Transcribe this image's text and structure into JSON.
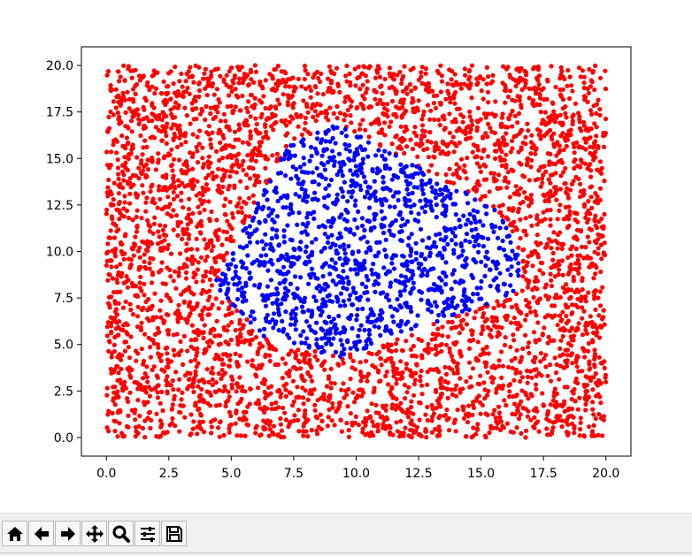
{
  "chart_data": {
    "type": "scatter",
    "title": "",
    "xlabel": "",
    "ylabel": "",
    "xlim": [
      -1.0,
      21.0
    ],
    "ylim": [
      -1.0,
      21.0
    ],
    "x_ticks": [
      "0.0",
      "2.5",
      "5.0",
      "7.5",
      "10.0",
      "12.5",
      "15.0",
      "17.5",
      "20.0"
    ],
    "y_ticks": [
      "0.0",
      "2.5",
      "5.0",
      "7.5",
      "10.0",
      "12.5",
      "15.0",
      "17.5",
      "20.0"
    ],
    "grid": false,
    "legend": "none",
    "series": [
      {
        "color": "#ff0000",
        "description": "uniform random points on [0,20]x[0,20] outside the region",
        "x_range": [
          0,
          20
        ],
        "y_range": [
          0,
          20
        ]
      },
      {
        "color": "#0000ff",
        "description": "points inside the convex polygon region",
        "polygon_vertices": [
          [
            4.3,
            8.2
          ],
          [
            7.3,
            15.8
          ],
          [
            9.3,
            16.9
          ],
          [
            15.7,
            12.2
          ],
          [
            16.6,
            9.6
          ],
          [
            16.5,
            7.8
          ],
          [
            9.4,
            4.3
          ],
          [
            6.4,
            5.3
          ]
        ]
      }
    ]
  },
  "toolbar": {
    "buttons": [
      {
        "name": "home-icon"
      },
      {
        "name": "back-arrow-icon"
      },
      {
        "name": "forward-arrow-icon"
      },
      {
        "name": "pan-icon"
      },
      {
        "name": "zoom-icon"
      },
      {
        "name": "configure-subplots-icon"
      },
      {
        "name": "save-icon"
      }
    ]
  }
}
